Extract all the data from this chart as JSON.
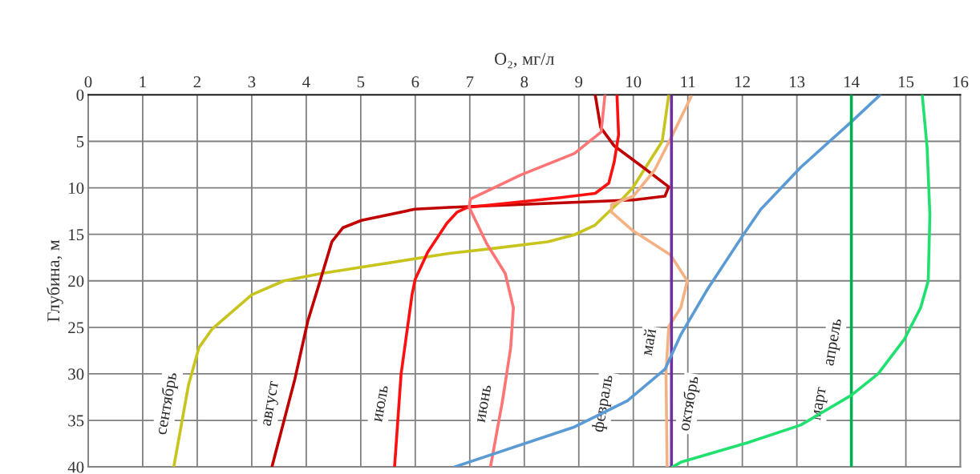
{
  "chart_data": {
    "type": "line",
    "xlabel": "O₂, мг/л",
    "ylabel": "Глубина, м",
    "xlim": [
      0,
      16
    ],
    "xticks": [
      0,
      1,
      2,
      3,
      4,
      5,
      6,
      7,
      8,
      9,
      10,
      11,
      12,
      13,
      14,
      15,
      16
    ],
    "ylim": [
      40,
      0
    ],
    "yticks": [
      0,
      5,
      10,
      15,
      20,
      25,
      30,
      35,
      40
    ],
    "grid": true,
    "series": [
      {
        "name": "сентябрь",
        "color": "#c8c41e",
        "x": [
          10.65,
          10.53,
          9.99,
          9.8,
          9.6,
          9.3,
          8.92,
          8.43,
          7.45,
          6.62,
          4.28,
          3.59,
          3.0,
          2.27,
          2.03,
          1.84,
          1.57
        ],
        "values": [
          0,
          5,
          10,
          11.2,
          12.3,
          14.0,
          15.05,
          15.8,
          16.5,
          17.05,
          19.2,
          20.0,
          21.5,
          25.2,
          27.2,
          31.2,
          40
        ]
      },
      {
        "name": "август",
        "color": "#c00000",
        "x": [
          9.3,
          9.4,
          9.65,
          10.18,
          10.65,
          10.58,
          10.0,
          6.62,
          5.99,
          5.01,
          4.67,
          4.47,
          4.28,
          4.03,
          3.79,
          3.37
        ],
        "values": [
          0,
          3.5,
          5.5,
          7.8,
          9.9,
          10.9,
          11.3,
          12.1,
          12.3,
          13.5,
          14.3,
          15.8,
          19.5,
          24.3,
          30.6,
          40
        ]
      },
      {
        "name": "июль",
        "color": "#ff1010",
        "x": [
          9.7,
          9.73,
          9.65,
          9.55,
          9.3,
          8.67,
          6.96,
          6.77,
          6.58,
          6.23,
          6.0,
          5.94,
          5.74,
          5.62
        ],
        "values": [
          0,
          4.3,
          7.2,
          9.5,
          10.6,
          11.05,
          12.1,
          12.6,
          13.8,
          16.9,
          19.8,
          21.5,
          30.0,
          40
        ]
      },
      {
        "name": "июнь",
        "color": "#ff7474",
        "x": [
          9.48,
          9.41,
          8.92,
          7.94,
          7.01,
          6.99,
          7.31,
          7.65,
          7.8,
          7.75,
          7.6,
          7.38
        ],
        "values": [
          0,
          4.0,
          6.3,
          8.6,
          11.2,
          12.1,
          16.0,
          19.2,
          22.9,
          27.2,
          32.9,
          40
        ]
      },
      {
        "name": "май",
        "color": "#f4b183",
        "x": [
          11.06,
          10.72,
          10.39,
          10.0,
          9.6,
          9.6,
          9.99,
          10.68,
          10.99,
          10.87,
          10.65,
          10.6,
          10.62
        ],
        "values": [
          0.2,
          4.3,
          8.1,
          10.9,
          11.8,
          12.6,
          14.6,
          17.2,
          20.0,
          22.9,
          24.9,
          30.0,
          40
        ]
      },
      {
        "name": "октябрь",
        "color": "#7030a0",
        "x": [
          10.7,
          10.7
        ],
        "values": [
          0,
          40
        ]
      },
      {
        "name": "февраль",
        "color": "#5b9bd5",
        "x": [
          14.53,
          14.0,
          13.07,
          12.34,
          12.0,
          11.36,
          10.87,
          10.58,
          9.89,
          8.92,
          6.72
        ],
        "values": [
          0,
          2.9,
          7.8,
          12.3,
          15.2,
          20.9,
          25.8,
          29.5,
          32.9,
          35.7,
          40
        ]
      },
      {
        "name": "апрель",
        "color": "#00b050",
        "x": [
          14.0,
          14.0
        ],
        "values": [
          0,
          40
        ]
      },
      {
        "name": "март",
        "color": "#20e070",
        "x": [
          15.3,
          15.39,
          15.44,
          15.41,
          15.27,
          14.97,
          14.49,
          14.0,
          13.07,
          12.09,
          10.87,
          10.72
        ],
        "values": [
          0,
          5.7,
          12.9,
          20.0,
          22.9,
          26.3,
          30.0,
          32.3,
          35.5,
          37.4,
          39.5,
          40
        ]
      }
    ]
  }
}
